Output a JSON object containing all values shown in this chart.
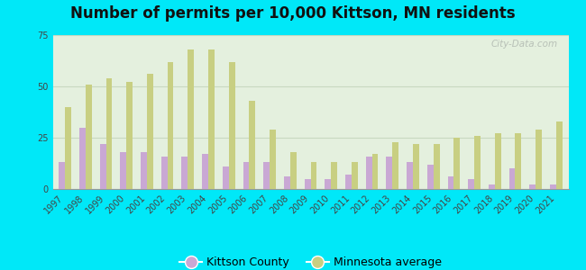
{
  "title": "Number of permits per 10,000 Kittson, MN residents",
  "years": [
    1997,
    1998,
    1999,
    2000,
    2001,
    2002,
    2003,
    2004,
    2005,
    2006,
    2007,
    2008,
    2009,
    2010,
    2011,
    2012,
    2013,
    2014,
    2015,
    2016,
    2017,
    2018,
    2019,
    2020,
    2021
  ],
  "kittson": [
    13,
    30,
    22,
    18,
    18,
    16,
    16,
    17,
    11,
    13,
    13,
    6,
    5,
    5,
    7,
    16,
    16,
    13,
    12,
    6,
    5,
    2,
    10,
    2,
    2
  ],
  "mn_avg": [
    40,
    51,
    54,
    52,
    56,
    62,
    68,
    68,
    62,
    43,
    29,
    18,
    13,
    13,
    13,
    17,
    23,
    22,
    22,
    25,
    26,
    27,
    27,
    29,
    33
  ],
  "kittson_color": "#c9a8d4",
  "mn_avg_color": "#c8cf82",
  "plot_bg_color": "#e4f0de",
  "outer_background": "#00e8f8",
  "grid_color": "#c8d8c0",
  "ylim": [
    0,
    75
  ],
  "yticks": [
    0,
    25,
    50,
    75
  ],
  "kittson_label": "Kittson County",
  "mn_avg_label": "Minnesota average",
  "watermark": "City-Data.com",
  "title_fontsize": 12,
  "tick_fontsize": 7,
  "legend_fontsize": 9
}
